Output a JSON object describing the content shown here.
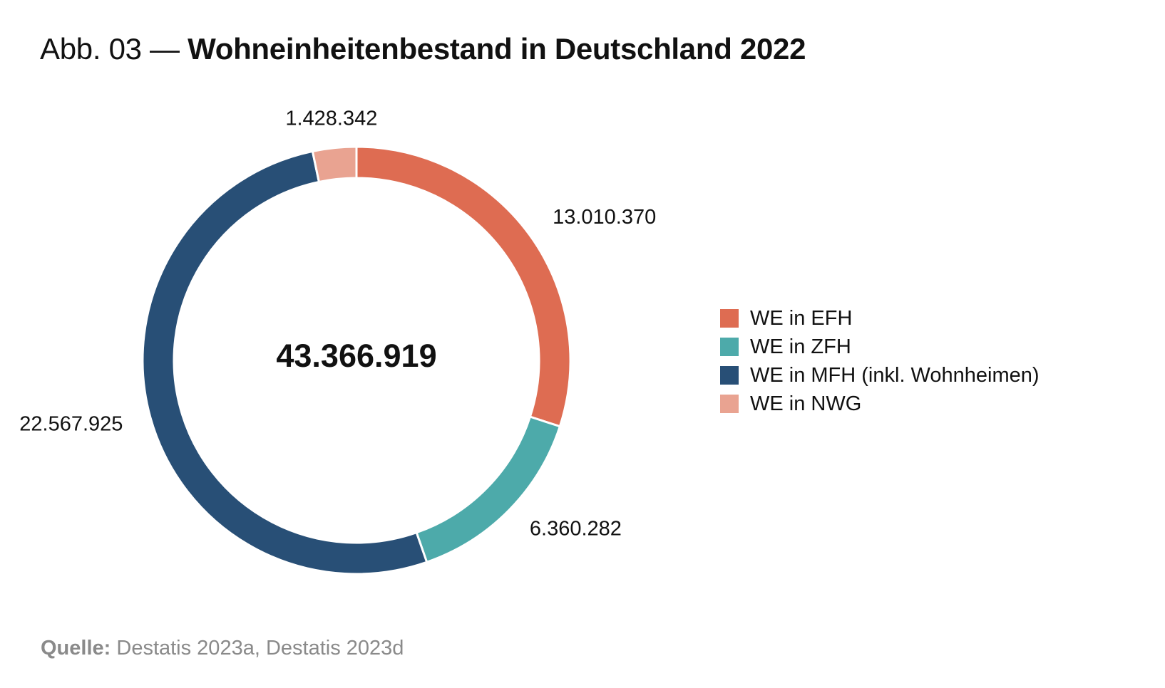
{
  "header": {
    "prefix": "Abb. 03 — ",
    "title": "Wohneinheitenbestand in Deutschland 2022"
  },
  "source": {
    "label": "Quelle:",
    "text": " Destatis 2023a, Destatis 2023d"
  },
  "chart_data": {
    "type": "pie",
    "variant": "donut",
    "title": "Wohneinheitenbestand in Deutschland 2022",
    "center_label": "43.366.919",
    "total": 43366919,
    "legend_position": "right",
    "slices": [
      {
        "name": "WE in EFH",
        "value": 13010370,
        "label": "13.010.370",
        "color": "#de6c52"
      },
      {
        "name": "WE in ZFH",
        "value": 6360282,
        "label": "6.360.282",
        "color": "#4daaaa"
      },
      {
        "name": "WE in MFH (inkl. Wohnheimen)",
        "value": 22567925,
        "label": "22.567.925",
        "color": "#284f76"
      },
      {
        "name": "WE in NWG",
        "value": 1428342,
        "label": "1.428.342",
        "color": "#e9a391"
      }
    ]
  }
}
